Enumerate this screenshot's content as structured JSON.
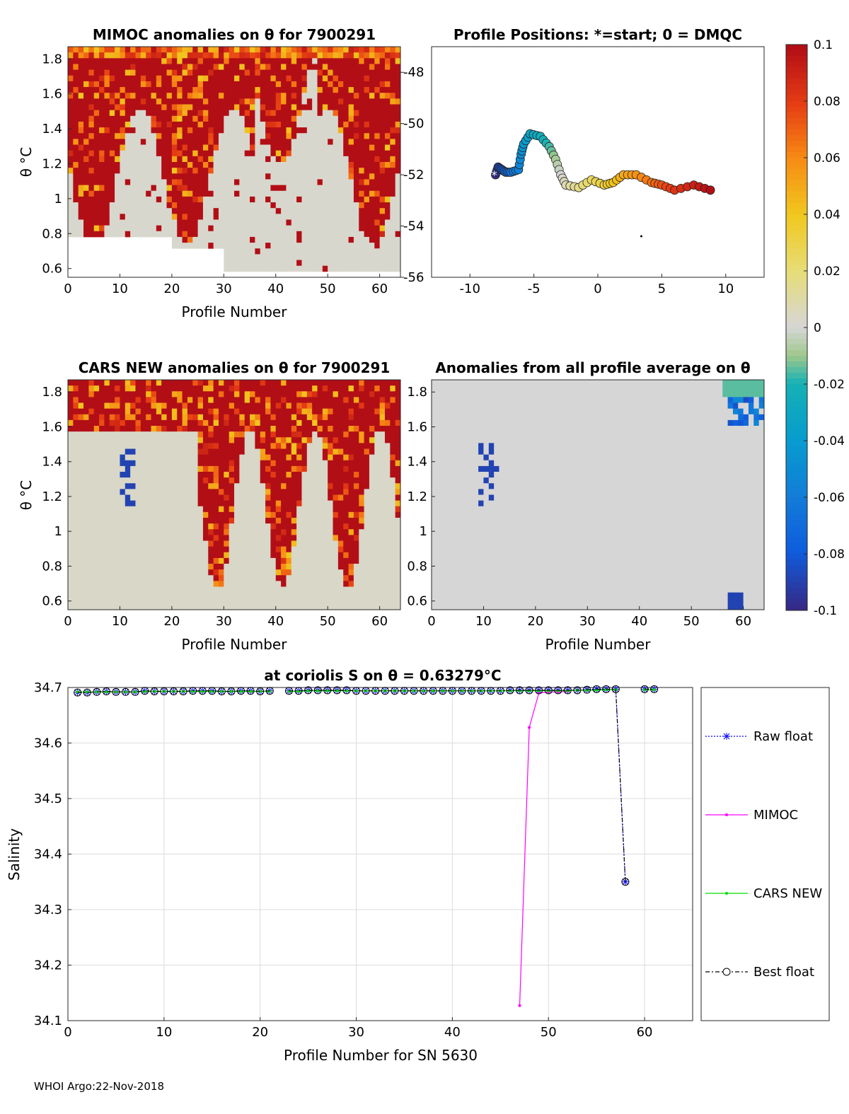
{
  "footer": "WHOI Argo:22-Nov-2018",
  "panels": {
    "mimoc": {
      "title": "MIMOC anomalies on θ  for 7900291",
      "xlabel": "Profile Number",
      "ylabel": "θ °C",
      "xticks": [
        "0",
        "10",
        "20",
        "30",
        "40",
        "50",
        "60"
      ],
      "yticks": [
        "0.6",
        "0.8",
        "1",
        "1.2",
        "1.4",
        "1.6",
        "1.8"
      ]
    },
    "positions": {
      "title": "Profile Positions: *=start; 0 = DMQC",
      "xticks": [
        "-10",
        "-5",
        "0",
        "5",
        "10"
      ],
      "yticks": [
        "-48",
        "-50",
        "-52",
        "-54",
        "-56"
      ]
    },
    "cars": {
      "title": "CARS NEW anomalies on θ for 7900291",
      "xlabel": "Profile Number",
      "ylabel": "θ °C",
      "xticks": [
        "0",
        "10",
        "20",
        "30",
        "40",
        "50",
        "60"
      ],
      "yticks": [
        "0.6",
        "0.8",
        "1",
        "1.2",
        "1.4",
        "1.6",
        "1.8"
      ]
    },
    "allavg": {
      "title": "Anomalies from all profile average on θ",
      "xlabel": "Profile Number",
      "xticks": [
        "0",
        "10",
        "20",
        "30",
        "40",
        "50",
        "60"
      ],
      "yticks": [
        "0.6",
        "0.8",
        "1",
        "1.2",
        "1.4",
        "1.6",
        "1.8"
      ]
    },
    "colorbar": {
      "ticks": [
        "0.1",
        "0.08",
        "0.06",
        "0.04",
        "0.02",
        "0",
        "-0.02",
        "-0.04",
        "-0.06",
        "-0.08",
        "-0.1"
      ]
    }
  },
  "chart_data": [
    {
      "type": "heatmap",
      "title": "MIMOC anomalies on θ  for 7900291",
      "xlabel": "Profile Number",
      "ylabel": "θ °C",
      "xlim": [
        0,
        64
      ],
      "ylim": [
        0.55,
        1.87
      ],
      "clim": [
        -0.1,
        0.1
      ]
    },
    {
      "type": "scatter",
      "title": "Profile Positions: *=start; 0 = DMQC",
      "xlim": [
        -13,
        13
      ],
      "ylim": [
        -56,
        -47
      ]
    },
    {
      "type": "heatmap",
      "title": "CARS NEW anomalies on θ for 7900291",
      "xlabel": "Profile Number",
      "ylabel": "θ °C",
      "xlim": [
        0,
        64
      ],
      "ylim": [
        0.55,
        1.87
      ],
      "clim": [
        -0.1,
        0.1
      ]
    },
    {
      "type": "heatmap",
      "title": "Anomalies from all profile average on θ",
      "xlabel": "Profile Number",
      "xlim": [
        0,
        64
      ],
      "ylim": [
        0.55,
        1.87
      ],
      "clim": [
        -0.1,
        0.1
      ]
    },
    {
      "type": "line",
      "title": "at coriolis S on θ = 0.63279°C",
      "xlabel": "Profile Number for SN 5630",
      "ylabel": "Salinity",
      "xlim": [
        0,
        65
      ],
      "ylim": [
        34.1,
        34.7
      ],
      "xticks": [
        "0",
        "10",
        "20",
        "30",
        "40",
        "50",
        "60"
      ],
      "yticks": [
        "34.1",
        "34.2",
        "34.3",
        "34.4",
        "34.5",
        "34.6",
        "34.7"
      ],
      "grid": true,
      "legend": "right",
      "series": [
        {
          "name": "Raw float",
          "color": "#0000ff",
          "x": [
            1,
            2,
            3,
            4,
            5,
            6,
            7,
            8,
            9,
            10,
            11,
            12,
            13,
            14,
            15,
            16,
            17,
            18,
            19,
            20,
            21,
            23,
            24,
            25,
            26,
            27,
            28,
            29,
            30,
            31,
            32,
            33,
            34,
            35,
            36,
            37,
            38,
            39,
            40,
            41,
            42,
            43,
            44,
            45,
            46,
            47,
            48,
            49,
            50,
            51,
            52,
            53,
            54,
            55,
            56,
            57,
            58,
            60,
            61
          ],
          "y": [
            34.691,
            34.691,
            34.692,
            34.693,
            34.692,
            34.692,
            34.692,
            34.694,
            34.693,
            34.693,
            34.693,
            34.693,
            34.694,
            34.694,
            34.694,
            34.693,
            34.693,
            34.694,
            34.694,
            34.693,
            34.694,
            34.694,
            34.694,
            34.695,
            34.695,
            34.695,
            34.695,
            34.695,
            34.694,
            34.694,
            34.694,
            34.694,
            34.694,
            34.694,
            34.694,
            34.694,
            34.694,
            34.694,
            34.694,
            34.694,
            34.694,
            34.694,
            34.694,
            34.694,
            34.695,
            34.695,
            34.695,
            34.695,
            34.695,
            34.695,
            34.695,
            34.695,
            34.696,
            34.697,
            34.697,
            34.697,
            34.35,
            34.697,
            34.697
          ]
        },
        {
          "name": "MIMOC",
          "color": "#ff00ff",
          "x": [
            47,
            48,
            49,
            50,
            51,
            52
          ],
          "y": [
            34.127,
            34.628,
            34.69,
            34.692,
            34.692,
            34.693
          ]
        },
        {
          "name": "CARS NEW",
          "color": "#00dd00",
          "x": [
            1,
            2,
            3,
            4,
            5,
            6,
            7,
            8,
            9,
            10,
            11,
            12,
            13,
            14,
            15,
            16,
            17,
            18,
            19,
            20,
            21,
            23,
            24,
            25,
            26,
            27,
            28,
            29,
            30,
            31,
            32,
            33,
            34,
            35,
            36,
            37,
            38,
            39,
            40,
            41,
            42,
            43,
            44,
            45,
            46,
            47,
            48,
            49,
            50,
            51,
            52,
            53,
            54,
            55,
            56,
            57,
            60,
            61
          ],
          "y": [
            34.692,
            34.692,
            34.692,
            34.692,
            34.692,
            34.692,
            34.692,
            34.693,
            34.693,
            34.693,
            34.693,
            34.693,
            34.693,
            34.693,
            34.693,
            34.693,
            34.693,
            34.693,
            34.693,
            34.693,
            34.693,
            34.693,
            34.693,
            34.694,
            34.694,
            34.694,
            34.694,
            34.694,
            34.694,
            34.694,
            34.694,
            34.694,
            34.694,
            34.694,
            34.694,
            34.694,
            34.694,
            34.694,
            34.694,
            34.694,
            34.694,
            34.694,
            34.694,
            34.694,
            34.694,
            34.694,
            34.694,
            34.694,
            34.694,
            34.694,
            34.694,
            34.695,
            34.695,
            34.695,
            34.696,
            34.696,
            34.696,
            34.696
          ]
        },
        {
          "name": "Best float",
          "color": "#000000",
          "x": [
            1,
            2,
            3,
            4,
            5,
            6,
            7,
            8,
            9,
            10,
            11,
            12,
            13,
            14,
            15,
            16,
            17,
            18,
            19,
            20,
            21,
            23,
            24,
            25,
            26,
            27,
            28,
            29,
            30,
            31,
            32,
            33,
            34,
            35,
            36,
            37,
            38,
            39,
            40,
            41,
            42,
            43,
            44,
            45,
            46,
            47,
            48,
            49,
            50,
            51,
            52,
            53,
            54,
            55,
            56,
            57,
            58,
            60,
            61
          ],
          "y": [
            34.691,
            34.691,
            34.692,
            34.693,
            34.692,
            34.692,
            34.692,
            34.694,
            34.693,
            34.693,
            34.693,
            34.693,
            34.694,
            34.694,
            34.694,
            34.693,
            34.693,
            34.694,
            34.694,
            34.693,
            34.694,
            34.694,
            34.694,
            34.695,
            34.695,
            34.695,
            34.695,
            34.695,
            34.694,
            34.694,
            34.694,
            34.694,
            34.694,
            34.694,
            34.694,
            34.694,
            34.694,
            34.694,
            34.694,
            34.694,
            34.694,
            34.694,
            34.694,
            34.694,
            34.695,
            34.695,
            34.695,
            34.695,
            34.695,
            34.695,
            34.695,
            34.695,
            34.696,
            34.697,
            34.697,
            34.697,
            34.35,
            34.697,
            34.697
          ]
        }
      ]
    }
  ]
}
